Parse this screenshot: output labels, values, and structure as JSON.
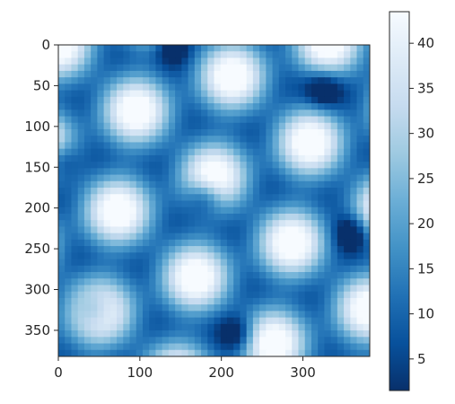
{
  "chart_data": {
    "type": "heatmap",
    "colormap": "Blues_r",
    "colors": {
      "low": "#08306b",
      "mid": "#4292c6",
      "high": "#f7fbff",
      "axis": "#262626"
    },
    "xlim": [
      0,
      382
    ],
    "ylim": [
      382,
      0
    ],
    "x_ticks": [
      {
        "value": 0,
        "label": "0"
      },
      {
        "value": 100,
        "label": "100"
      },
      {
        "value": 200,
        "label": "200"
      },
      {
        "value": 300,
        "label": "300"
      }
    ],
    "y_ticks": [
      {
        "value": 0,
        "label": "0"
      },
      {
        "value": 50,
        "label": "50"
      },
      {
        "value": 100,
        "label": "100"
      },
      {
        "value": 150,
        "label": "150"
      },
      {
        "value": 200,
        "label": "200"
      },
      {
        "value": 250,
        "label": "250"
      },
      {
        "value": 300,
        "label": "300"
      },
      {
        "value": 350,
        "label": "350"
      }
    ],
    "colorbar": {
      "range": [
        1.5,
        43.5
      ],
      "ticks": [
        {
          "value": 5,
          "label": "5"
        },
        {
          "value": 10,
          "label": "10"
        },
        {
          "value": 15,
          "label": "15"
        },
        {
          "value": 20,
          "label": "20"
        },
        {
          "value": 25,
          "label": "25"
        },
        {
          "value": 30,
          "label": "30"
        },
        {
          "value": 35,
          "label": "35"
        },
        {
          "value": 40,
          "label": "40"
        }
      ]
    },
    "pattern": {
      "description_values": "quasi-periodic hexagonal interference pattern",
      "dark_centers": [
        [
          140,
          0
        ],
        [
          325,
          55
        ],
        [
          0,
          140
        ],
        [
          180,
          185
        ],
        [
          360,
          230
        ],
        [
          45,
          325
        ],
        [
          220,
          355
        ]
      ],
      "value_min": 1.5,
      "value_max": 43.5
    }
  }
}
